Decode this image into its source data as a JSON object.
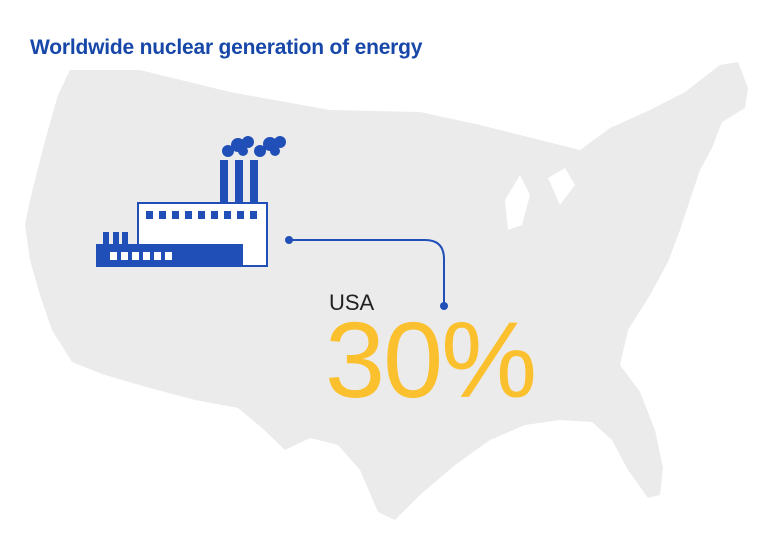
{
  "title": "Worldwide nuclear generation of energy",
  "stat": {
    "country": "USA",
    "value": "30%"
  },
  "colors": {
    "title": "#1747a8",
    "map_fill": "#ebebeb",
    "factory": "#1f4fb7",
    "connector": "#1f4fb7",
    "value": "#fbc02d"
  },
  "icons": {
    "map": "usa-map-icon",
    "factory": "factory-icon"
  }
}
